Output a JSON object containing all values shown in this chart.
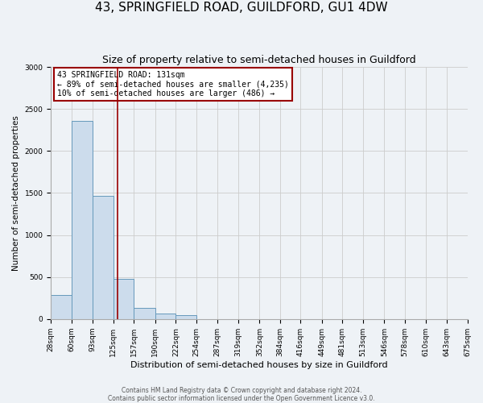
{
  "title": "43, SPRINGFIELD ROAD, GUILDFORD, GU1 4DW",
  "subtitle": "Size of property relative to semi-detached houses in Guildford",
  "xlabel": "Distribution of semi-detached houses by size in Guildford",
  "ylabel": "Number of semi-detached properties",
  "bin_edges": [
    28,
    60,
    93,
    125,
    157,
    190,
    222,
    254,
    287,
    319,
    352,
    384,
    416,
    449,
    481,
    513,
    546,
    578,
    610,
    643,
    675
  ],
  "bin_labels": [
    "28sqm",
    "60sqm",
    "93sqm",
    "125sqm",
    "157sqm",
    "190sqm",
    "222sqm",
    "254sqm",
    "287sqm",
    "319sqm",
    "352sqm",
    "384sqm",
    "416sqm",
    "449sqm",
    "481sqm",
    "513sqm",
    "546sqm",
    "578sqm",
    "610sqm",
    "643sqm",
    "675sqm"
  ],
  "bar_heights": [
    290,
    2360,
    1465,
    475,
    130,
    65,
    45,
    0,
    0,
    0,
    0,
    0,
    0,
    0,
    0,
    0,
    0,
    0,
    0,
    0
  ],
  "bar_color": "#ccdcec",
  "bar_edge_color": "#6699bb",
  "property_line_x": 131,
  "property_line_color": "#990000",
  "annotation_text": "43 SPRINGFIELD ROAD: 131sqm\n← 89% of semi-detached houses are smaller (4,235)\n10% of semi-detached houses are larger (486) →",
  "annotation_box_color": "#ffffff",
  "annotation_box_edge": "#990000",
  "ylim": [
    0,
    3000
  ],
  "yticks": [
    0,
    500,
    1000,
    1500,
    2000,
    2500,
    3000
  ],
  "footer_line1": "Contains HM Land Registry data © Crown copyright and database right 2024.",
  "footer_line2": "Contains public sector information licensed under the Open Government Licence v3.0.",
  "background_color": "#eef2f6",
  "plot_bg_color": "#eef2f6",
  "title_fontsize": 11,
  "subtitle_fontsize": 9,
  "xlabel_fontsize": 8,
  "ylabel_fontsize": 7.5,
  "tick_fontsize": 6.5,
  "annotation_fontsize": 7,
  "footer_fontsize": 5.5
}
